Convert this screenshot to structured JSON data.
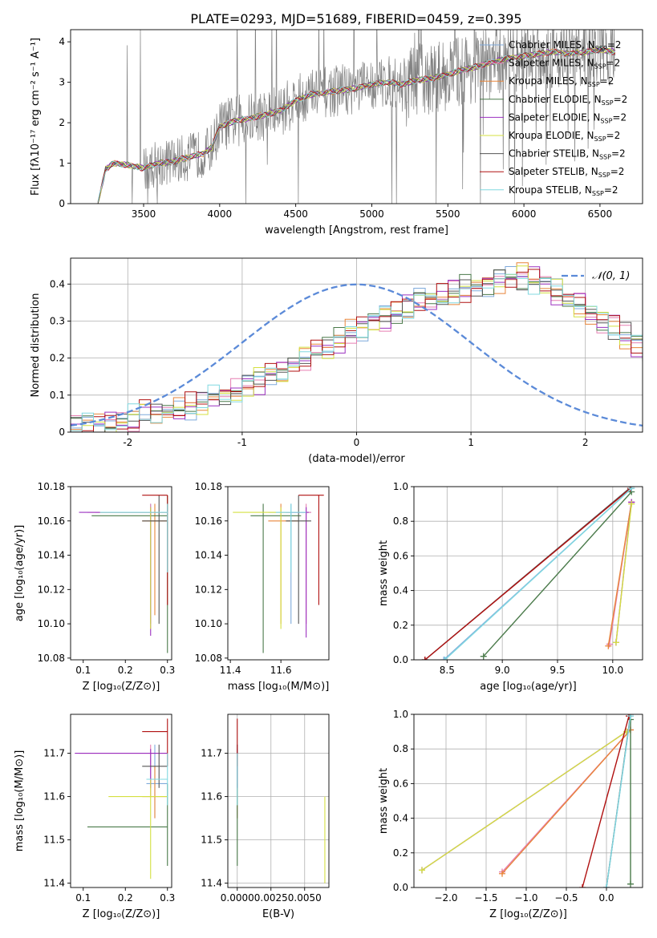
{
  "figure": {
    "title": "PLATE=0293, MJD=51689, FIBERID=0459, z=0.395"
  },
  "models": [
    {
      "name": "Chabrier MILES, N",
      "sub": "SSP",
      "tail": "=2",
      "color": "#7faadb"
    },
    {
      "name": "Salpeter MILES, N",
      "sub": "SSP",
      "tail": "=2",
      "color": "#e67fb2"
    },
    {
      "name": "Kroupa MILES, N",
      "sub": "SSP",
      "tail": "=2",
      "color": "#e8853a"
    },
    {
      "name": "Chabrier ELODIE, N",
      "sub": "SSP",
      "tail": "=2",
      "color": "#4a7a4a"
    },
    {
      "name": "Salpeter ELODIE, N",
      "sub": "SSP",
      "tail": "=2",
      "color": "#9b30c0"
    },
    {
      "name": "Kroupa ELODIE, N",
      "sub": "SSP",
      "tail": "=2",
      "color": "#d4e040"
    },
    {
      "name": "Chabrier STELIB, N",
      "sub": "SSP",
      "tail": "=2",
      "color": "#555555"
    },
    {
      "name": "Salpeter STELIB, N",
      "sub": "SSP",
      "tail": "=2",
      "color": "#b01010"
    },
    {
      "name": "Kroupa STELIB, N",
      "sub": "SSP",
      "tail": "=2",
      "color": "#80d8e0"
    }
  ],
  "chart_data": [
    {
      "id": "spectrum",
      "type": "line",
      "xlabel": "wavelength [Angstrom, rest frame]",
      "ylabel": "Flux [fλ10⁻¹⁷ erg cm⁻² s⁻¹ A⁻¹]",
      "xlim": [
        3020,
        6780
      ],
      "ylim": [
        0,
        4.3
      ],
      "xticks": [
        3500,
        4000,
        4500,
        5000,
        5500,
        6000,
        6500
      ],
      "yticks": [
        0,
        1,
        2,
        3,
        4
      ],
      "data_color": "#808080",
      "continuum": {
        "x": [
          3200,
          3250,
          3300,
          3400,
          3500,
          3600,
          3700,
          3800,
          3900,
          3950,
          4000,
          4100,
          4200,
          4300,
          4400,
          4500,
          4600,
          4700,
          4800,
          4900,
          5000,
          5100,
          5200,
          5300,
          5400,
          5500,
          5600,
          5700,
          5800,
          5900,
          6000,
          6100,
          6200,
          6300,
          6400,
          6500,
          6600
        ],
        "y": [
          0.0,
          0.85,
          1.0,
          0.95,
          0.88,
          1.0,
          1.05,
          1.15,
          1.25,
          1.4,
          1.9,
          2.05,
          2.1,
          2.2,
          2.3,
          2.55,
          2.7,
          2.75,
          2.8,
          2.85,
          2.95,
          3.0,
          2.95,
          3.05,
          3.1,
          3.2,
          3.3,
          3.4,
          3.5,
          3.6,
          3.65,
          3.7,
          3.75,
          3.7,
          3.75,
          3.8,
          3.75
        ]
      },
      "grid": false,
      "legend": "upper right"
    },
    {
      "id": "residuals",
      "type": "histogram",
      "xlabel": "(data-model)/error",
      "ylabel": "Normed distribution",
      "xlim": [
        -2.5,
        2.5
      ],
      "ylim": [
        0,
        0.47
      ],
      "xticks": [
        -2,
        -1,
        0,
        1,
        2
      ],
      "yticks": [
        0.0,
        0.1,
        0.2,
        0.3,
        0.4
      ],
      "bin_width": 0.1,
      "base_values": [
        0.01,
        0.02,
        0.02,
        0.03,
        0.03,
        0.04,
        0.05,
        0.05,
        0.06,
        0.06,
        0.07,
        0.08,
        0.09,
        0.1,
        0.11,
        0.13,
        0.14,
        0.16,
        0.17,
        0.19,
        0.2,
        0.22,
        0.23,
        0.25,
        0.27,
        0.28,
        0.3,
        0.31,
        0.33,
        0.34,
        0.36,
        0.36,
        0.37,
        0.38,
        0.39,
        0.39,
        0.4,
        0.41,
        0.42,
        0.42,
        0.41,
        0.4,
        0.38,
        0.36,
        0.34,
        0.32,
        0.3,
        0.28,
        0.26,
        0.24,
        0.22,
        0.2,
        0.18,
        0.17,
        0.15,
        0.13,
        0.12,
        0.11,
        0.1,
        0.09,
        0.08,
        0.07,
        0.07,
        0.06,
        0.06,
        0.05,
        0.05,
        0.05,
        0.04,
        0.04
      ],
      "base_x0": -2.5,
      "curve_label": "𝒩(0, 1)",
      "curve_color": "#5b8ad8",
      "grid": true,
      "legend": "upper right"
    },
    {
      "id": "age_vs_Z",
      "type": "errorbar",
      "xlabel": "Z [log₁₀(Z/Z⊙)]",
      "ylabel": "age  [log₁₀(age/yr)]",
      "xlim": [
        0.07,
        0.31
      ],
      "ylim": [
        10.079,
        10.18
      ],
      "xticks": [
        0.1,
        0.2,
        0.3
      ],
      "xticklabels": [
        "0.1",
        "0.2",
        "0.3"
      ],
      "yticks": [
        10.08,
        10.1,
        10.12,
        10.14,
        10.16,
        10.18
      ],
      "yticklabels": [
        "10.08",
        "10.10",
        "10.12",
        "10.14",
        "10.16",
        "10.18"
      ],
      "points": [
        {
          "model": 0,
          "x": 0.26,
          "y": 10.165,
          "xlo": 0.13,
          "xhi": 0.3,
          "ylo": 10.1,
          "yhi": 10.17
        },
        {
          "model": 1,
          "x": 0.26,
          "y": 10.165,
          "xlo": 0.11,
          "xhi": 0.3,
          "ylo": 10.1,
          "yhi": 10.17
        },
        {
          "model": 2,
          "x": 0.27,
          "y": 10.16,
          "xlo": 0.24,
          "xhi": 0.3,
          "ylo": 10.105,
          "yhi": 10.17
        },
        {
          "model": 3,
          "x": 0.3,
          "y": 10.163,
          "xlo": 0.12,
          "xhi": 0.3,
          "ylo": 10.083,
          "yhi": 10.175
        },
        {
          "model": 4,
          "x": 0.26,
          "y": 10.165,
          "xlo": 0.09,
          "xhi": 0.3,
          "ylo": 10.093,
          "yhi": 10.168
        },
        {
          "model": 5,
          "x": 0.26,
          "y": 10.165,
          "xlo": 0.14,
          "xhi": 0.3,
          "ylo": 10.097,
          "yhi": 10.168
        },
        {
          "model": 6,
          "x": 0.28,
          "y": 10.16,
          "xlo": 0.24,
          "xhi": 0.3,
          "ylo": 10.1,
          "yhi": 10.175
        },
        {
          "model": 7,
          "x": 0.3,
          "y": 10.175,
          "xlo": 0.24,
          "xhi": 0.3,
          "ylo": 10.111,
          "yhi": 10.175
        },
        {
          "model": 8,
          "x": 0.3,
          "y": 10.165,
          "xlo": 0.14,
          "xhi": 0.3,
          "ylo": 10.13,
          "yhi": 10.17
        }
      ]
    },
    {
      "id": "age_vs_mass",
      "type": "errorbar",
      "xlabel": "mass [log₁₀(M/M⊙)]",
      "ylabel": "",
      "xlim": [
        11.39,
        11.79
      ],
      "ylim": [
        10.079,
        10.18
      ],
      "xticks": [
        11.4,
        11.6
      ],
      "xticklabels": [
        "11.4",
        "11.6"
      ],
      "yticks": [
        10.08,
        10.1,
        10.12,
        10.14,
        10.16,
        10.18
      ],
      "yticklabels": [
        "10.08",
        "10.10",
        "10.12",
        "10.14",
        "10.16",
        "10.18"
      ],
      "points": [
        {
          "model": 0,
          "x": 11.64,
          "y": 10.165,
          "xlo": 11.55,
          "xhi": 11.72,
          "ylo": 10.1,
          "yhi": 10.17
        },
        {
          "model": 1,
          "x": 11.7,
          "y": 10.165,
          "xlo": 11.6,
          "xhi": 11.72,
          "ylo": 10.1,
          "yhi": 10.17
        },
        {
          "model": 2,
          "x": 11.6,
          "y": 10.16,
          "xlo": 11.55,
          "xhi": 11.67,
          "ylo": 10.1,
          "yhi": 10.17
        },
        {
          "model": 3,
          "x": 11.53,
          "y": 10.163,
          "xlo": 11.48,
          "xhi": 11.68,
          "ylo": 10.083,
          "yhi": 10.17
        },
        {
          "model": 4,
          "x": 11.7,
          "y": 10.165,
          "xlo": 11.62,
          "xhi": 11.71,
          "ylo": 10.092,
          "yhi": 10.168
        },
        {
          "model": 5,
          "x": 11.6,
          "y": 10.165,
          "xlo": 11.41,
          "xhi": 11.64,
          "ylo": 10.097,
          "yhi": 10.168
        },
        {
          "model": 6,
          "x": 11.67,
          "y": 10.16,
          "xlo": 11.62,
          "xhi": 11.72,
          "ylo": 10.1,
          "yhi": 10.175
        },
        {
          "model": 7,
          "x": 11.75,
          "y": 10.175,
          "xlo": 11.67,
          "xhi": 11.77,
          "ylo": 10.111,
          "yhi": 10.175
        },
        {
          "model": 8,
          "x": 11.64,
          "y": 10.165,
          "xlo": 11.58,
          "xhi": 11.7,
          "ylo": 10.13,
          "yhi": 10.17
        }
      ]
    },
    {
      "id": "weight_vs_age",
      "type": "line",
      "xlabel": "age  [log₁₀(age/yr)]",
      "ylabel": "mass weight",
      "xlim": [
        8.2,
        10.27
      ],
      "ylim": [
        0,
        1
      ],
      "xticks": [
        8.5,
        9.0,
        9.5,
        10.0
      ],
      "xticklabels": [
        "8.5",
        "9.0",
        "9.5",
        "10.0"
      ],
      "yticks": [
        0,
        0.2,
        0.4,
        0.6,
        0.8,
        1.0
      ],
      "yticklabels": [
        "0.0",
        "0.2",
        "0.4",
        "0.6",
        "0.8",
        "1.0"
      ],
      "series": [
        {
          "model": 0,
          "x": [
            8.47,
            10.17
          ],
          "y": [
            0.0,
            0.99
          ]
        },
        {
          "model": 1,
          "x": [
            9.97,
            10.17
          ],
          "y": [
            0.09,
            0.91
          ]
        },
        {
          "model": 2,
          "x": [
            9.96,
            10.17
          ],
          "y": [
            0.08,
            0.91
          ]
        },
        {
          "model": 3,
          "x": [
            8.83,
            10.17
          ],
          "y": [
            0.02,
            0.97
          ]
        },
        {
          "model": 4,
          "x": [
            10.03,
            10.17
          ],
          "y": [
            0.1,
            0.91
          ]
        },
        {
          "model": 5,
          "x": [
            10.03,
            10.17
          ],
          "y": [
            0.1,
            0.9
          ]
        },
        {
          "model": 6,
          "x": [
            8.3,
            10.17
          ],
          "y": [
            0.0,
            1.0
          ]
        },
        {
          "model": 7,
          "x": [
            8.3,
            10.16
          ],
          "y": [
            0.0,
            0.99
          ]
        },
        {
          "model": 8,
          "x": [
            8.48,
            10.17
          ],
          "y": [
            0.0,
            0.99
          ]
        }
      ],
      "grid": true
    },
    {
      "id": "mass_vs_Z",
      "type": "errorbar",
      "xlabel": "Z [log₁₀(Z/Z⊙)]",
      "ylabel": "mass [log₁₀(M/M⊙)]",
      "xlim": [
        0.07,
        0.31
      ],
      "ylim": [
        11.39,
        11.79
      ],
      "xticks": [
        0.1,
        0.2,
        0.3
      ],
      "xticklabels": [
        "0.1",
        "0.2",
        "0.3"
      ],
      "yticks": [
        11.4,
        11.5,
        11.6,
        11.7
      ],
      "yticklabels": [
        "11.4",
        "11.5",
        "11.6",
        "11.7"
      ],
      "points": [
        {
          "model": 0,
          "x": 0.27,
          "y": 11.63,
          "xlo": 0.25,
          "xhi": 0.3,
          "ylo": 11.55,
          "yhi": 11.72
        },
        {
          "model": 1,
          "x": 0.26,
          "y": 11.7,
          "xlo": 0.09,
          "xhi": 0.3,
          "ylo": 11.6,
          "yhi": 11.72
        },
        {
          "model": 2,
          "x": 0.27,
          "y": 11.6,
          "xlo": 0.24,
          "xhi": 0.3,
          "ylo": 11.55,
          "yhi": 11.67
        },
        {
          "model": 3,
          "x": 0.3,
          "y": 11.53,
          "xlo": 0.11,
          "xhi": 0.3,
          "ylo": 11.44,
          "yhi": 11.63
        },
        {
          "model": 4,
          "x": 0.26,
          "y": 11.7,
          "xlo": 0.08,
          "xhi": 0.3,
          "ylo": 11.62,
          "yhi": 11.71
        },
        {
          "model": 5,
          "x": 0.26,
          "y": 11.6,
          "xlo": 0.16,
          "xhi": 0.3,
          "ylo": 11.41,
          "yhi": 11.64
        },
        {
          "model": 6,
          "x": 0.28,
          "y": 11.67,
          "xlo": 0.24,
          "xhi": 0.3,
          "ylo": 11.62,
          "yhi": 11.72
        },
        {
          "model": 7,
          "x": 0.3,
          "y": 11.75,
          "xlo": 0.24,
          "xhi": 0.3,
          "ylo": 11.67,
          "yhi": 11.78
        },
        {
          "model": 8,
          "x": 0.3,
          "y": 11.64,
          "xlo": 0.25,
          "xhi": 0.3,
          "ylo": 11.58,
          "yhi": 11.7
        }
      ]
    },
    {
      "id": "mass_vs_EBV",
      "type": "errorbar",
      "xlabel": "E(B-V)",
      "ylabel": "",
      "xlim": [
        -0.0007,
        0.0068
      ],
      "ylim": [
        11.39,
        11.79
      ],
      "xticks": [
        0.0,
        0.0025,
        0.005
      ],
      "xticklabels": [
        "0.0000",
        "0.0025",
        "0.0050"
      ],
      "yticks": [
        11.4,
        11.5,
        11.6,
        11.7
      ],
      "yticklabels": [
        "11.4",
        "11.5",
        "11.6",
        "11.7"
      ],
      "points": [
        {
          "model": 0,
          "x": 0.0,
          "y": 11.63,
          "xlo": 0.0,
          "xhi": 0.0,
          "ylo": 11.55,
          "yhi": 11.72
        },
        {
          "model": 1,
          "x": 0.0,
          "y": 11.7,
          "xlo": 0.0,
          "xhi": 0.0,
          "ylo": 11.6,
          "yhi": 11.72
        },
        {
          "model": 2,
          "x": 0.0,
          "y": 11.6,
          "xlo": 0.0,
          "xhi": 0.0,
          "ylo": 11.55,
          "yhi": 11.67
        },
        {
          "model": 3,
          "x": 0.0,
          "y": 11.53,
          "xlo": 0.0,
          "xhi": 0.0,
          "ylo": 11.44,
          "yhi": 11.63
        },
        {
          "model": 4,
          "x": 0.0,
          "y": 11.7,
          "xlo": 0.0,
          "xhi": 0.0,
          "ylo": 11.62,
          "yhi": 11.71
        },
        {
          "model": 5,
          "x": 0.0065,
          "y": 11.6,
          "xlo": 0.0065,
          "xhi": 0.0065,
          "ylo": 11.4,
          "yhi": 11.6
        },
        {
          "model": 6,
          "x": 0.0,
          "y": 11.67,
          "xlo": 0.0,
          "xhi": 0.0,
          "ylo": 11.62,
          "yhi": 11.72
        },
        {
          "model": 7,
          "x": 0.0,
          "y": 11.75,
          "xlo": 0.0,
          "xhi": 0.0,
          "ylo": 11.67,
          "yhi": 11.78
        },
        {
          "model": 8,
          "x": 0.0,
          "y": 11.64,
          "xlo": 0.0,
          "xhi": 0.0,
          "ylo": 11.58,
          "yhi": 11.7
        }
      ],
      "grid": true
    },
    {
      "id": "weight_vs_Z",
      "type": "line",
      "xlabel": "Z [log₁₀(Z/Z⊙)]",
      "ylabel": "mass weight",
      "xlim": [
        -2.4,
        0.45
      ],
      "ylim": [
        0,
        1
      ],
      "xticks": [
        -2.0,
        -1.5,
        -1.0,
        -0.5,
        0.0
      ],
      "xticklabels": [
        "−2.0",
        "−1.5",
        "−1.0",
        "−0.5",
        "0.0"
      ],
      "yticks": [
        0,
        0.2,
        0.4,
        0.6,
        0.8,
        1.0
      ],
      "yticklabels": [
        "0.0",
        "0.2",
        "0.4",
        "0.6",
        "0.8",
        "1.0"
      ],
      "series": [
        {
          "model": 0,
          "x": [
            0.0,
            0.3
          ],
          "y": [
            0.0,
            0.99
          ]
        },
        {
          "model": 1,
          "x": [
            -1.3,
            0.3
          ],
          "y": [
            0.09,
            0.91
          ]
        },
        {
          "model": 2,
          "x": [
            -1.3,
            0.3
          ],
          "y": [
            0.08,
            0.91
          ]
        },
        {
          "model": 3,
          "x": [
            0.3,
            0.3
          ],
          "y": [
            0.02,
            0.97
          ]
        },
        {
          "model": 4,
          "x": [
            -2.3,
            0.25
          ],
          "y": [
            0.1,
            0.9
          ]
        },
        {
          "model": 5,
          "x": [
            -2.3,
            0.25
          ],
          "y": [
            0.1,
            0.9
          ]
        },
        {
          "model": 6,
          "x": [
            0.0,
            0.3
          ],
          "y": [
            0.0,
            1.0
          ]
        },
        {
          "model": 7,
          "x": [
            -0.3,
            0.28
          ],
          "y": [
            0.0,
            0.99
          ]
        },
        {
          "model": 8,
          "x": [
            0.0,
            0.3
          ],
          "y": [
            0.0,
            0.99
          ]
        }
      ],
      "grid": true
    }
  ]
}
